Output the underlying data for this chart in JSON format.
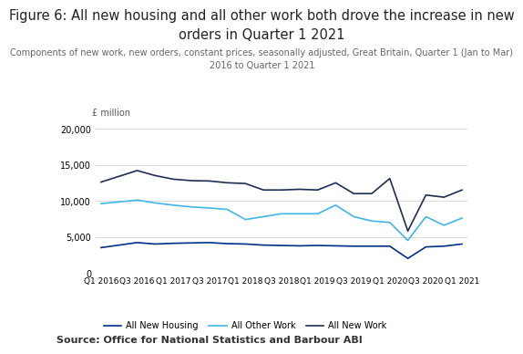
{
  "title_line1": "Figure 6: All new housing and all other work both drove the increase in new",
  "title_line2": "orders in Quarter 1 2021",
  "subtitle_line1": "Components of new work, new orders, constant prices, seasonally adjusted, Great Britain, Quarter 1 (Jan to Mar)",
  "subtitle_line2": "2016 to Quarter 1 2021",
  "source": "Source: Office for National Statistics and Barbour ABI",
  "ylabel": "£ million",
  "xlabel_ticks": [
    "Q1 2016",
    "Q3 2016",
    "Q1 2017",
    "Q3 2017",
    "Q1 2018",
    "Q3 2018",
    "Q1 2019",
    "Q3 2019",
    "Q1 2020",
    "Q3 2020",
    "Q1 2021"
  ],
  "ylim": [
    0,
    20000
  ],
  "yticks": [
    0,
    5000,
    10000,
    15000,
    20000
  ],
  "all_new_housing": [
    3500,
    3850,
    4200,
    4000,
    4100,
    4150,
    4200,
    4050,
    4000,
    3850,
    3800,
    3750,
    3800,
    3750,
    3700,
    3700,
    3700,
    2000,
    3600,
    3700,
    4000
  ],
  "all_other_work": [
    9600,
    9850,
    10100,
    9700,
    9400,
    9150,
    9000,
    8800,
    7400,
    7800,
    8200,
    8200,
    8200,
    9400,
    7800,
    7200,
    7000,
    4500,
    7800,
    6600,
    7600
  ],
  "all_new_work": [
    12600,
    13400,
    14200,
    13500,
    13000,
    12800,
    12750,
    12500,
    12400,
    11500,
    11500,
    11600,
    11500,
    12500,
    11000,
    11000,
    13100,
    5800,
    10800,
    10500,
    11500
  ],
  "housing_color": "#003087",
  "other_color": "#41B6E6",
  "new_work_color": "#1C2D56",
  "bg_color": "#FFFFFF",
  "grid_color": "#CCCCCC"
}
